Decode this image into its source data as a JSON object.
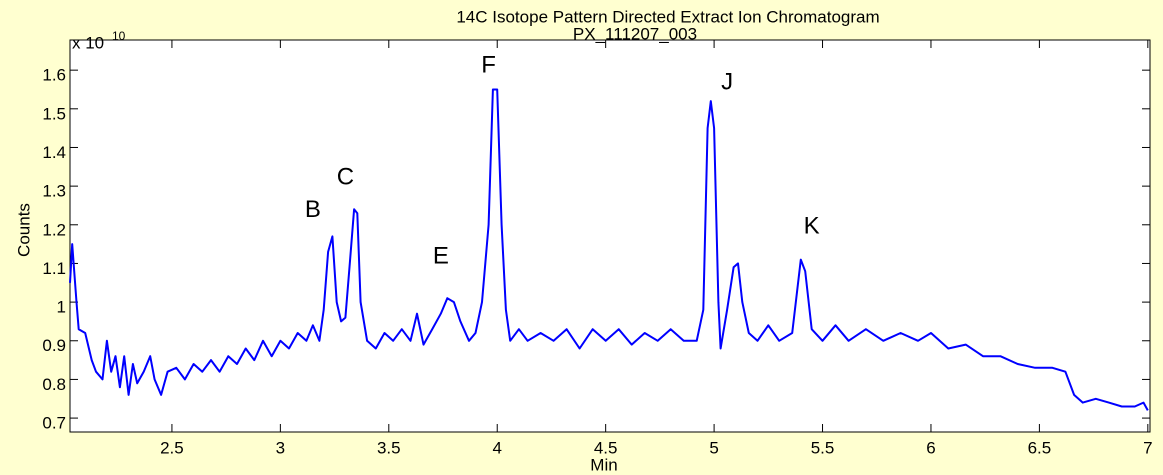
{
  "chart_data": {
    "type": "line",
    "title": "14C Isotope Pattern Directed Extract Ion Chromatogram",
    "subtitle": "PX_111207_003",
    "x_label": "Min",
    "y_label": "Counts",
    "y_scale_label": "x 10",
    "y_scale_exponent": "10",
    "grid": false,
    "xlim": [
      2.03,
      7.01
    ],
    "ylim": [
      0.664,
      1.678
    ],
    "xticks": [
      2.5,
      3,
      3.5,
      4,
      4.5,
      5,
      5.5,
      6,
      6.5,
      7
    ],
    "yticks": [
      0.7,
      0.8,
      0.9,
      1,
      1.1,
      1.2,
      1.3,
      1.4,
      1.5,
      1.6
    ],
    "annotations": [
      {
        "text": "B",
        "x": 3.15,
        "y": 1.237
      },
      {
        "text": "C",
        "x": 3.3,
        "y": 1.32
      },
      {
        "text": "E",
        "x": 3.74,
        "y": 1.116
      },
      {
        "text": "F",
        "x": 3.96,
        "y": 1.61
      },
      {
        "text": "J",
        "x": 5.06,
        "y": 1.566
      },
      {
        "text": "K",
        "x": 5.45,
        "y": 1.194
      }
    ],
    "x": [
      2.03,
      2.04,
      2.06,
      2.07,
      2.1,
      2.13,
      2.15,
      2.18,
      2.2,
      2.22,
      2.24,
      2.26,
      2.28,
      2.3,
      2.32,
      2.34,
      2.37,
      2.4,
      2.42,
      2.45,
      2.48,
      2.52,
      2.56,
      2.6,
      2.64,
      2.68,
      2.72,
      2.76,
      2.8,
      2.84,
      2.88,
      2.92,
      2.96,
      3.0,
      3.04,
      3.08,
      3.12,
      3.15,
      3.18,
      3.2,
      3.22,
      3.24,
      3.26,
      3.28,
      3.3,
      3.32,
      3.34,
      3.355,
      3.37,
      3.4,
      3.44,
      3.48,
      3.52,
      3.56,
      3.6,
      3.63,
      3.66,
      3.7,
      3.74,
      3.77,
      3.8,
      3.83,
      3.87,
      3.9,
      3.93,
      3.96,
      3.98,
      4.0,
      4.02,
      4.04,
      4.06,
      4.1,
      4.14,
      4.2,
      4.26,
      4.32,
      4.38,
      4.44,
      4.5,
      4.56,
      4.62,
      4.68,
      4.74,
      4.8,
      4.86,
      4.92,
      4.95,
      4.97,
      4.985,
      5.0,
      5.02,
      5.03,
      5.06,
      5.09,
      5.11,
      5.13,
      5.16,
      5.2,
      5.25,
      5.3,
      5.36,
      5.4,
      5.42,
      5.45,
      5.5,
      5.56,
      5.62,
      5.7,
      5.78,
      5.86,
      5.94,
      6.0,
      6.08,
      6.16,
      6.24,
      6.32,
      6.4,
      6.48,
      6.56,
      6.62,
      6.66,
      6.7,
      6.76,
      6.82,
      6.88,
      6.94,
      6.98,
      7.0
    ],
    "series": [
      {
        "color": "#0000ff",
        "values": [
          1.05,
          1.15,
          1.0,
          0.93,
          0.92,
          0.85,
          0.82,
          0.8,
          0.9,
          0.82,
          0.86,
          0.78,
          0.86,
          0.76,
          0.84,
          0.79,
          0.82,
          0.86,
          0.8,
          0.76,
          0.82,
          0.83,
          0.8,
          0.84,
          0.82,
          0.85,
          0.82,
          0.86,
          0.84,
          0.88,
          0.85,
          0.9,
          0.86,
          0.9,
          0.88,
          0.92,
          0.9,
          0.94,
          0.9,
          0.98,
          1.13,
          1.17,
          1.0,
          0.95,
          0.96,
          1.1,
          1.24,
          1.23,
          1.0,
          0.9,
          0.88,
          0.92,
          0.9,
          0.93,
          0.9,
          0.97,
          0.89,
          0.93,
          0.97,
          1.01,
          1.0,
          0.95,
          0.9,
          0.92,
          1.0,
          1.2,
          1.55,
          1.55,
          1.2,
          0.98,
          0.9,
          0.93,
          0.9,
          0.92,
          0.9,
          0.93,
          0.88,
          0.93,
          0.9,
          0.93,
          0.89,
          0.92,
          0.9,
          0.93,
          0.9,
          0.9,
          0.98,
          1.45,
          1.52,
          1.45,
          1.0,
          0.88,
          0.98,
          1.09,
          1.1,
          1.0,
          0.92,
          0.9,
          0.94,
          0.9,
          0.92,
          1.11,
          1.08,
          0.93,
          0.9,
          0.94,
          0.9,
          0.93,
          0.9,
          0.92,
          0.9,
          0.92,
          0.88,
          0.89,
          0.86,
          0.86,
          0.84,
          0.83,
          0.83,
          0.82,
          0.76,
          0.74,
          0.75,
          0.74,
          0.73,
          0.73,
          0.74,
          0.72
        ]
      }
    ]
  }
}
